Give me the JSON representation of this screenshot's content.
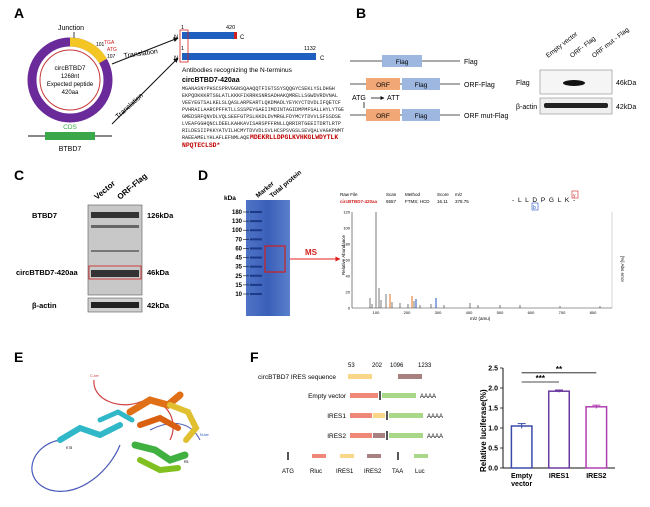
{
  "panelA": {
    "letter": "A",
    "junction": "Junction",
    "circle_name": "circBTBD7",
    "circle_len": "1268nt",
    "circle_expected": "Expected peptide",
    "circle_aa": "420aa",
    "tga": "TGA",
    "atg": "ATG",
    "num101": "101",
    "num107": "107",
    "cds": "CDS",
    "gene": "BTBD7",
    "translation_top": "Translation",
    "translation_bottom": "Translation",
    "bar1_start": "1",
    "bar1_end": "420",
    "bar2_start": "1",
    "bar2_end": "1132",
    "n_label": "N",
    "c_label": "C",
    "antibody_text": "Antibodies recognizing the N-terminus",
    "seq_title": "circBTBD7-420aa",
    "seq_lines": [
      "MGANASNYPHSCSPRVGGNSQAAQQTFIGTSSYSQQGYCSEKLYSLDHGH",
      "EKPQDKKKRTSGLATLKKKFIKRRKSNRSADHAKQMRELLSGWDVRDVNAL",
      "VEEYEGTSALKELSLQASLARPEARTLQKDMADLYEYKYCTDVDLIFQETCF",
      "PVHRAILAARCPFFKTLLSSSPEYGAEIIMDINTAGIDMPMFSALLHYLYTGE",
      "GMEDSRFQNVDLVQLSEEFGTPSLKKDLDVMRGLFDYMCYTDVVLSFSSDSE",
      "LVEAFGGHQNCLDEELKAHKAVISARSPFFRNLLQRRIRTGEEITDRTLRTP",
      "RILDESIIPKKYATVILHCMYTDVVDLSVLHCSPSVGSLSEVQALVAGKPNMT",
      "RAEEAMELYHLAFLEFNMLAQE"
    ],
    "seq_red_tail": "MDEKRLLDPGLKVHKGLWDYTLK",
    "seq_red_line2": "NPQTECLSD*"
  },
  "panelB": {
    "letter": "B",
    "flag": "Flag",
    "orf": "ORF",
    "row1_label": "Flag",
    "row2_label": "ORF-Flag",
    "row3_label": "ORF mut-Flag",
    "mut_from": "ATG",
    "mut_to": "ATT",
    "lanes": [
      "Empty vector",
      "ORF- Flag",
      "ORF mut - Flag"
    ],
    "blot_flag": "Flag",
    "blot_actin": "β-actin",
    "kda_flag": "46kDa",
    "kda_actin": "42kDa"
  },
  "panelC": {
    "letter": "C",
    "lanes": [
      "Vector",
      "ORF-Flag"
    ],
    "row_btbd7": "BTBD7",
    "row_circ": "circBTBD7-420aa",
    "row_actin": "β-actin",
    "kda1": "126kDa",
    "kda2": "46kDa",
    "kda3": "42kDa"
  },
  "panelD": {
    "letter": "D",
    "kda_unit": "kDa",
    "lanes": [
      "Marker",
      "Total protein"
    ],
    "markers": [
      "180",
      "130",
      "100",
      "70",
      "60",
      "45",
      "35",
      "25",
      "15",
      "10"
    ],
    "ms": "MS",
    "spec_header": {
      "raw_file_label": "Raw File",
      "raw_file_value": "circBTBD7-420aa",
      "scan_label": "Scan",
      "scan_value": "6557",
      "method_label": "Method",
      "method_value": "FTMS; HCD",
      "score_label": "Score",
      "score_value": "16.11",
      "mz_label": "m/z",
      "mz_value": "378.75"
    },
    "peptide": "- L L D P G L K -",
    "ion_y": "y",
    "ion_b": "b",
    "y_axis": "Relative Abundance",
    "y_ticks": [
      "0",
      "20",
      "40",
      "60",
      "80",
      "100",
      "120"
    ],
    "x_ticks": [
      "100",
      "200",
      "300",
      "400",
      "500",
      "600",
      "700",
      "800"
    ],
    "x_axis": "m/z (amu)",
    "right_axis": "[%] Abs error"
  },
  "panelE": {
    "letter": "E",
    "label_c": "C-ter",
    "label_n": "N-ter",
    "label_k": "K78",
    "label_k2": "R5"
  },
  "panelF": {
    "letter": "F",
    "ires_title": "circBTBD7 IRES sequence",
    "pos": [
      "53",
      "202",
      "1096",
      "1233"
    ],
    "rows": [
      "Empty  vector",
      "IRES1",
      "IRES2"
    ],
    "polyA": "AAAA",
    "legend": [
      "ATG",
      "Rluc",
      "IRES1",
      "IRES2",
      "TAA",
      "Luc"
    ],
    "chart_data": {
      "type": "bar",
      "categories": [
        "Empty vector",
        "IRES1",
        "IRES2"
      ],
      "values": [
        1.05,
        1.92,
        1.53
      ],
      "errors": [
        0.06,
        0.03,
        0.04
      ],
      "ylabel": "Relative luciferase(%)",
      "ylim": [
        0.0,
        2.5
      ],
      "yticks": [
        "0.0",
        "0.5",
        "1.0",
        "1.5",
        "2.0",
        "2.5"
      ],
      "sig1": "***",
      "sig2": "**",
      "colors": [
        "#3a4aa8",
        "#6a3aa0",
        "#b040b0"
      ]
    }
  }
}
